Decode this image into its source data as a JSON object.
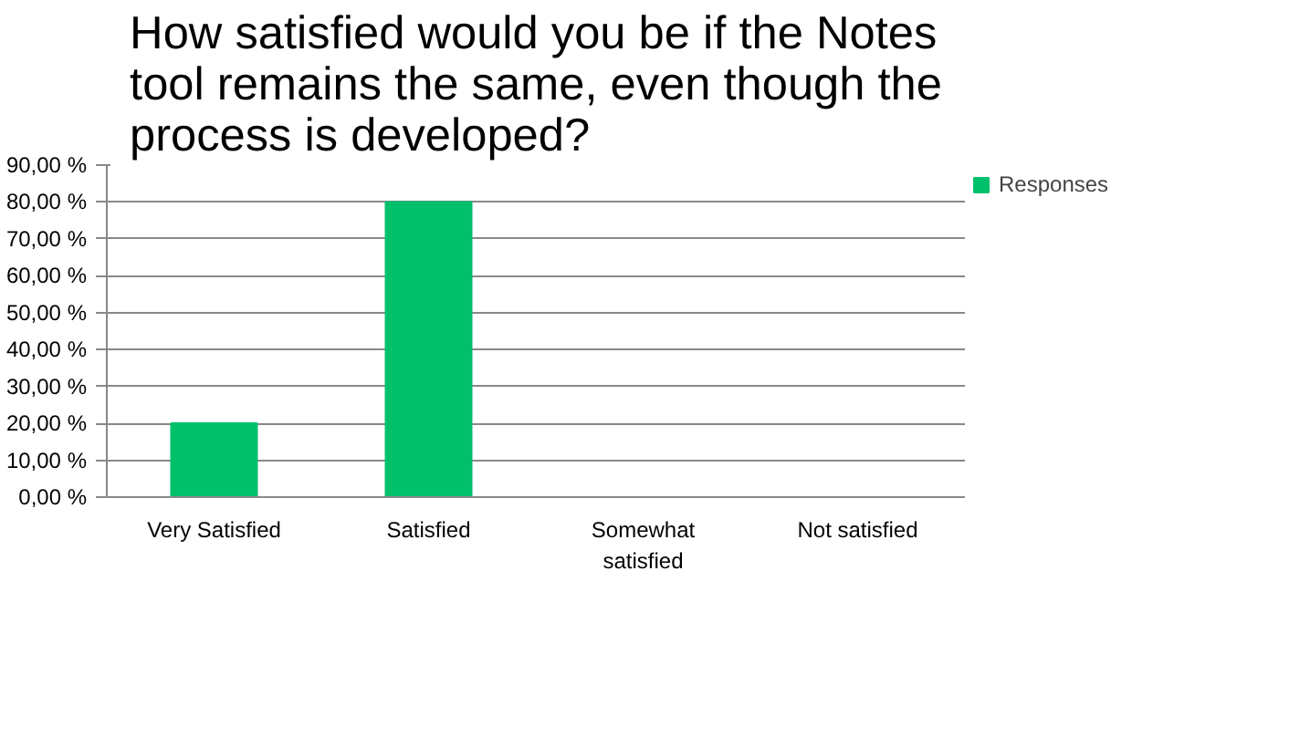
{
  "chart_data": {
    "type": "bar",
    "title": "How satisfied would you be if the Notes tool remains the same, even though the process is developed?",
    "categories": [
      "Very Satisfied",
      "Satisfied",
      "Somewhat satisfied",
      "Not satisfied"
    ],
    "series": [
      {
        "name": "Responses",
        "color": "#00c06c",
        "values": [
          20,
          80,
          0,
          0
        ]
      }
    ],
    "ylim": [
      0,
      90
    ],
    "yticks": [
      {
        "value": 0,
        "label": "0,00 %"
      },
      {
        "value": 10,
        "label": "10,00 %"
      },
      {
        "value": 20,
        "label": "20,00 %"
      },
      {
        "value": 30,
        "label": "30,00 %"
      },
      {
        "value": 40,
        "label": "40,00 %"
      },
      {
        "value": 50,
        "label": "50,00 %"
      },
      {
        "value": 60,
        "label": "60,00 %"
      },
      {
        "value": 70,
        "label": "70,00 %"
      },
      {
        "value": 80,
        "label": "80,00 %"
      },
      {
        "value": 90,
        "label": "90,00 %"
      }
    ],
    "grid": "y",
    "legend": "right"
  }
}
